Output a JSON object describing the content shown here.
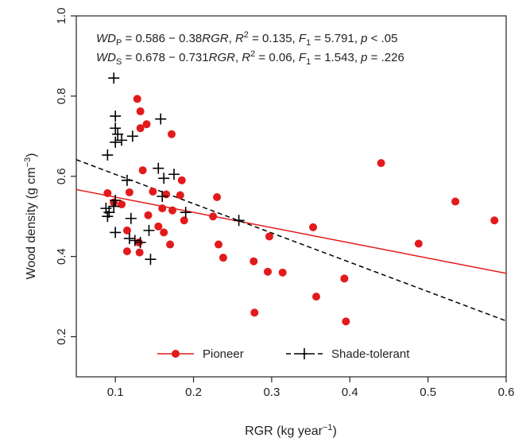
{
  "chart_data": {
    "type": "scatter",
    "xlabel": "RGR (kg year",
    "xlabel_sup": "−1",
    "xlabel_end": ")",
    "ylabel": "Wood density (g cm",
    "ylabel_sup": "−3",
    "ylabel_end": ")",
    "xlim": [
      0.05,
      0.6
    ],
    "ylim": [
      0.1,
      1.0
    ],
    "x_ticks": [
      0.1,
      0.2,
      0.3,
      0.4,
      0.5,
      0.6
    ],
    "x_tick_labels": [
      "0.1",
      "0.2",
      "0.3",
      "0.4",
      "0.5",
      "0.6"
    ],
    "y_ticks": [
      0.2,
      0.4,
      0.6,
      0.8,
      1.0
    ],
    "y_tick_labels": [
      "0.2",
      "0.4",
      "0.6",
      "0.8",
      "1.0"
    ],
    "grid": false,
    "legend_position": "bottom-center",
    "annotations": {
      "eq1": {
        "lhs": "WD",
        "sub": "P",
        "eq": " = 0.586 − 0.38",
        "var": "RGR",
        "r2_sep": ", ",
        "r2": "R",
        "r2_sup": "2",
        "r2_val": " = 0.135, ",
        "f": "F",
        "f_sub": "1",
        "f_val": " = 5.791, ",
        "p": "p",
        "p_val": " < .05"
      },
      "eq2": {
        "lhs": "WD",
        "sub": "S",
        "eq": " = 0.678 − 0.731",
        "var": "RGR",
        "r2_sep": ", ",
        "r2": "R",
        "r2_sup": "2",
        "r2_val": " = 0.06, ",
        "f": "F",
        "f_sub": "1",
        "f_val": " = 1.543, ",
        "p": "p",
        "p_val": " = .226"
      }
    },
    "series": [
      {
        "name": "Pioneer",
        "color": "#e31a1c",
        "marker": "circle",
        "fit": {
          "intercept": 0.586,
          "slope": -0.38,
          "style": "solid"
        },
        "points": [
          [
            0.09,
            0.558
          ],
          [
            0.098,
            0.535
          ],
          [
            0.108,
            0.53
          ],
          [
            0.115,
            0.465
          ],
          [
            0.115,
            0.413
          ],
          [
            0.118,
            0.56
          ],
          [
            0.128,
            0.793
          ],
          [
            0.132,
            0.762
          ],
          [
            0.132,
            0.72
          ],
          [
            0.13,
            0.435
          ],
          [
            0.131,
            0.41
          ],
          [
            0.135,
            0.615
          ],
          [
            0.14,
            0.73
          ],
          [
            0.142,
            0.503
          ],
          [
            0.148,
            0.562
          ],
          [
            0.155,
            0.475
          ],
          [
            0.16,
            0.52
          ],
          [
            0.162,
            0.46
          ],
          [
            0.165,
            0.555
          ],
          [
            0.17,
            0.43
          ],
          [
            0.172,
            0.705
          ],
          [
            0.173,
            0.515
          ],
          [
            0.183,
            0.553
          ],
          [
            0.185,
            0.59
          ],
          [
            0.188,
            0.49
          ],
          [
            0.225,
            0.5
          ],
          [
            0.23,
            0.548
          ],
          [
            0.232,
            0.43
          ],
          [
            0.238,
            0.397
          ],
          [
            0.277,
            0.388
          ],
          [
            0.278,
            0.26
          ],
          [
            0.295,
            0.362
          ],
          [
            0.297,
            0.45
          ],
          [
            0.314,
            0.36
          ],
          [
            0.353,
            0.473
          ],
          [
            0.357,
            0.3
          ],
          [
            0.393,
            0.345
          ],
          [
            0.395,
            0.238
          ],
          [
            0.44,
            0.633
          ],
          [
            0.488,
            0.432
          ],
          [
            0.535,
            0.537
          ],
          [
            0.585,
            0.49
          ]
        ]
      },
      {
        "name": "Shade-tolerant",
        "color": "#000000",
        "marker": "plus",
        "fit": {
          "intercept": 0.678,
          "slope": -0.731,
          "style": "dashed"
        },
        "points": [
          [
            0.098,
            0.845
          ],
          [
            0.1,
            0.75
          ],
          [
            0.1,
            0.72
          ],
          [
            0.103,
            0.705
          ],
          [
            0.1,
            0.685
          ],
          [
            0.108,
            0.69
          ],
          [
            0.09,
            0.653
          ],
          [
            0.122,
            0.7
          ],
          [
            0.158,
            0.743
          ],
          [
            0.115,
            0.59
          ],
          [
            0.1,
            0.54
          ],
          [
            0.098,
            0.525
          ],
          [
            0.092,
            0.51
          ],
          [
            0.09,
            0.5
          ],
          [
            0.088,
            0.52
          ],
          [
            0.1,
            0.46
          ],
          [
            0.12,
            0.495
          ],
          [
            0.118,
            0.445
          ],
          [
            0.125,
            0.44
          ],
          [
            0.132,
            0.435
          ],
          [
            0.143,
            0.465
          ],
          [
            0.145,
            0.393
          ],
          [
            0.155,
            0.62
          ],
          [
            0.162,
            0.595
          ],
          [
            0.175,
            0.605
          ],
          [
            0.16,
            0.55
          ],
          [
            0.19,
            0.51
          ],
          [
            0.258,
            0.49
          ]
        ]
      }
    ]
  }
}
